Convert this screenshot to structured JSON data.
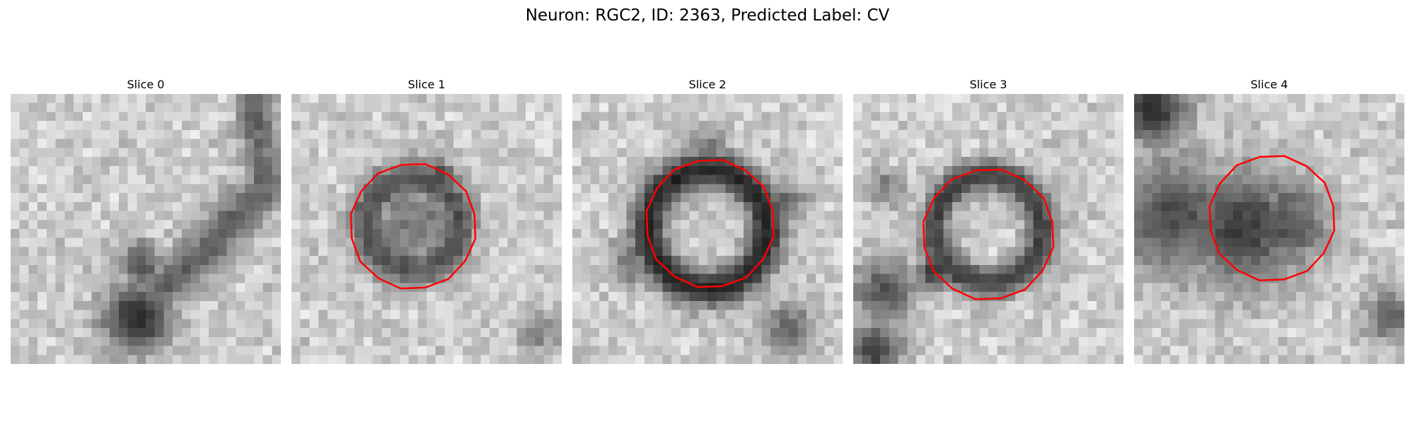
{
  "figure": {
    "title": "Neuron: RGC2, ID: 2363, Predicted Label: CV",
    "overlay_color": "#ff0000",
    "colormap": "grayscale"
  },
  "panels": [
    {
      "title": "Slice 0",
      "contour_visible": false,
      "description_features": [
        {
          "type": "dark-ridge",
          "points": [
            [
              0.9,
              0.0
            ],
            [
              0.92,
              0.2
            ],
            [
              0.95,
              0.35
            ]
          ],
          "width": 0.05,
          "darkness": 0.6
        },
        {
          "type": "dark-ridge",
          "points": [
            [
              0.95,
              0.35
            ],
            [
              0.82,
              0.47
            ],
            [
              0.7,
              0.6
            ],
            [
              0.55,
              0.73
            ]
          ],
          "width": 0.06,
          "darkness": 0.6
        },
        {
          "type": "dark-blob",
          "center": [
            0.47,
            0.83
          ],
          "radius": 0.09,
          "darkness": 0.95
        },
        {
          "type": "dark-blob",
          "center": [
            0.48,
            0.63
          ],
          "radius": 0.06,
          "darkness": 0.7
        },
        {
          "type": "dark-blob",
          "center": [
            0.55,
            0.72
          ],
          "radius": 0.05,
          "darkness": 0.6
        }
      ]
    },
    {
      "title": "Slice 1",
      "contour_visible": true,
      "description_features": [
        {
          "type": "dark-ring",
          "center": [
            0.45,
            0.48
          ],
          "radius": 0.17,
          "width": 0.07,
          "darkness": 0.7
        },
        {
          "type": "dark-blob",
          "center": [
            0.45,
            0.48
          ],
          "radius": 0.13,
          "darkness": 0.5
        },
        {
          "type": "dark-blob",
          "center": [
            0.4,
            0.63
          ],
          "radius": 0.05,
          "darkness": 0.75
        },
        {
          "type": "dark-blob",
          "center": [
            0.55,
            0.3
          ],
          "radius": 0.04,
          "darkness": 0.8
        },
        {
          "type": "dark-blob",
          "center": [
            0.92,
            0.88
          ],
          "radius": 0.06,
          "darkness": 0.4
        }
      ]
    },
    {
      "title": "Slice 2",
      "contour_visible": true,
      "description_features": [
        {
          "type": "dark-ring",
          "center": [
            0.5,
            0.5
          ],
          "radius": 0.22,
          "width": 0.07,
          "darkness": 0.95
        },
        {
          "type": "dark-blob",
          "center": [
            0.5,
            0.22
          ],
          "radius": 0.06,
          "darkness": 0.6
        },
        {
          "type": "dark-blob",
          "center": [
            0.22,
            0.62
          ],
          "radius": 0.06,
          "darkness": 0.55
        },
        {
          "type": "dark-blob",
          "center": [
            0.78,
            0.4
          ],
          "radius": 0.06,
          "darkness": 0.55
        },
        {
          "type": "dark-blob",
          "center": [
            0.8,
            0.87
          ],
          "radius": 0.07,
          "darkness": 0.6
        }
      ]
    },
    {
      "title": "Slice 3",
      "contour_visible": true,
      "description_features": [
        {
          "type": "dark-ring",
          "center": [
            0.5,
            0.5
          ],
          "radius": 0.2,
          "width": 0.06,
          "darkness": 0.8
        },
        {
          "type": "dark-blob",
          "center": [
            0.12,
            0.73
          ],
          "radius": 0.08,
          "darkness": 0.75
        },
        {
          "type": "dark-blob",
          "center": [
            0.3,
            0.66
          ],
          "radius": 0.05,
          "darkness": 0.85
        },
        {
          "type": "dark-blob",
          "center": [
            0.08,
            0.95
          ],
          "radius": 0.07,
          "darkness": 0.85
        },
        {
          "type": "dark-blob",
          "center": [
            0.12,
            0.35
          ],
          "radius": 0.05,
          "darkness": 0.45
        }
      ]
    },
    {
      "title": "Slice 4",
      "contour_visible": true,
      "description_features": [
        {
          "type": "dark-blob",
          "center": [
            0.07,
            0.06
          ],
          "radius": 0.09,
          "darkness": 0.95
        },
        {
          "type": "dark-blob",
          "center": [
            0.15,
            0.45
          ],
          "radius": 0.15,
          "darkness": 0.75
        },
        {
          "type": "dark-blob",
          "center": [
            0.4,
            0.5
          ],
          "radius": 0.15,
          "darkness": 0.85
        },
        {
          "type": "dark-blob",
          "center": [
            0.55,
            0.48
          ],
          "radius": 0.12,
          "darkness": 0.7
        },
        {
          "type": "dark-blob",
          "center": [
            0.95,
            0.82
          ],
          "radius": 0.07,
          "darkness": 0.6
        }
      ]
    }
  ]
}
